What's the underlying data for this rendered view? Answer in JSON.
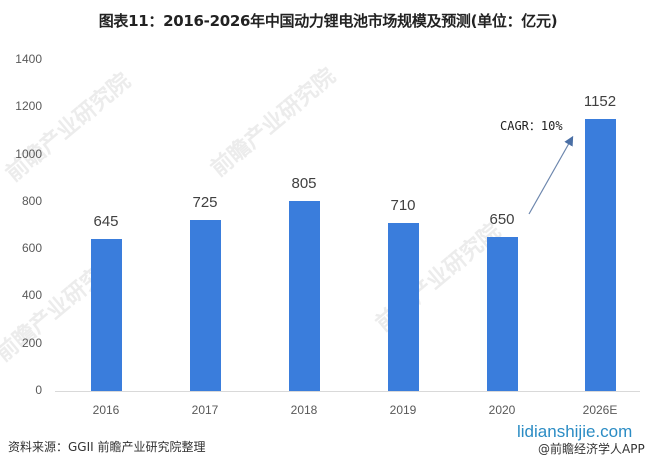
{
  "header": {
    "title": "图表11：2016-2026年中国动力锂电池市场规模及预测(单位：亿元)"
  },
  "chart_data": {
    "type": "bar",
    "title": "图表11：2016-2026年中国动力锂电池市场规模及预测(单位：亿元)",
    "xlabel": "",
    "ylabel": "亿元",
    "categories": [
      "2016",
      "2017",
      "2018",
      "2019",
      "2020",
      "2026E"
    ],
    "values": [
      645,
      725,
      805,
      710,
      650,
      1152
    ],
    "ylim": [
      0,
      1400
    ],
    "yticks": [
      0,
      200,
      400,
      600,
      800,
      1000,
      1200,
      1400
    ],
    "grid": false,
    "legend": null,
    "bar_color": "#3a7ddc",
    "annotations": [
      {
        "text": "CAGR：10%",
        "type": "arrow",
        "from": "2020",
        "to": "2026E"
      }
    ]
  },
  "axis": {
    "yticks": [
      "1400",
      "1200",
      "1000",
      "800",
      "600",
      "400",
      "200",
      "0"
    ]
  },
  "annotation": {
    "cagr_label": "CAGR：10%"
  },
  "footer": {
    "source": "资料来源：GGII 前瞻产业研究院整理",
    "site": "lidianshijie.com",
    "app": "@前瞻经济学人APP"
  },
  "watermark": {
    "text": "前瞻产业研究院"
  },
  "colors": {
    "bar": "#3a7ddc",
    "arrow": "#4a6fa5",
    "site": "#2b8cc4"
  }
}
